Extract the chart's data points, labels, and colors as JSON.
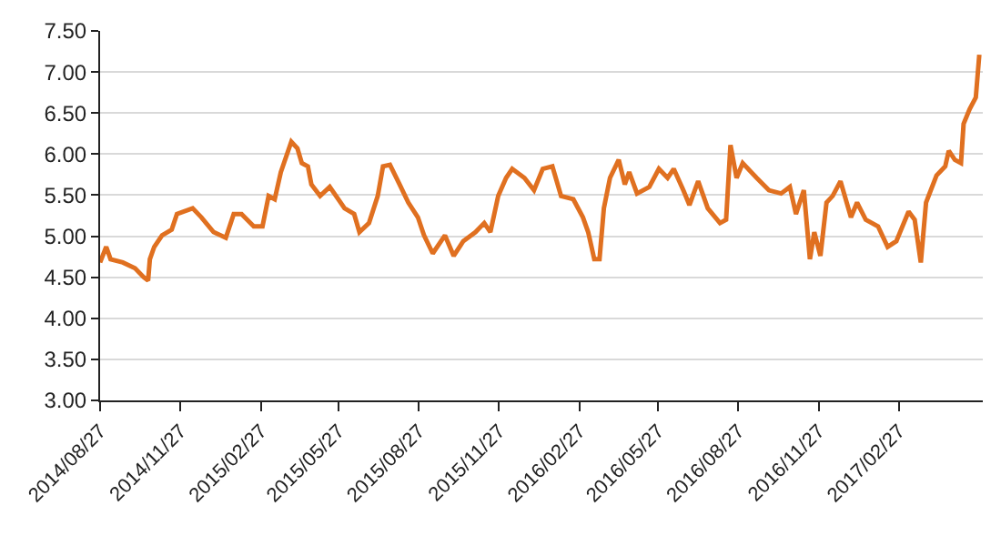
{
  "chart_data": {
    "type": "line",
    "grid": "y",
    "legend": false,
    "marker": "none",
    "line_style": "solid",
    "xlim": [
      "2014-08-27",
      "2017-06-03"
    ],
    "ylim": [
      3,
      7.5
    ],
    "yticks": [
      {
        "value": 3,
        "label": "3.00"
      },
      {
        "value": 3.5,
        "label": "3.50"
      },
      {
        "value": 4,
        "label": "4.00"
      },
      {
        "value": 4.5,
        "label": "4.50"
      },
      {
        "value": 5,
        "label": "5.00"
      },
      {
        "value": 5.5,
        "label": "5.50"
      },
      {
        "value": 6,
        "label": "6.00"
      },
      {
        "value": 6.5,
        "label": "6.50"
      },
      {
        "value": 7,
        "label": "7.00"
      },
      {
        "value": 7.5,
        "label": "7.50"
      }
    ],
    "xticks": [
      {
        "value": "2014-08-27",
        "label": "2014/08/27"
      },
      {
        "value": "2014-11-27",
        "label": "2014/11/27"
      },
      {
        "value": "2015-02-27",
        "label": "2015/02/27"
      },
      {
        "value": "2015-05-27",
        "label": "2015/05/27"
      },
      {
        "value": "2015-08-27",
        "label": "2015/08/27"
      },
      {
        "value": "2015-11-27",
        "label": "2015/11/27"
      },
      {
        "value": "2016-02-27",
        "label": "2016/02/27"
      },
      {
        "value": "2016-05-27",
        "label": "2016/05/27"
      },
      {
        "value": "2016-08-27",
        "label": "2016/08/27"
      },
      {
        "value": "2016-11-27",
        "label": "2016/11/27"
      },
      {
        "value": "2017-02-27",
        "label": "2017/02/27"
      }
    ],
    "x": [
      "2014-08-27",
      "2014-09-03",
      "2014-09-08",
      "2014-09-22",
      "2014-10-06",
      "2014-10-16",
      "2014-10-21",
      "2014-10-23",
      "2014-10-28",
      "2014-11-06",
      "2014-11-17",
      "2014-11-23",
      "2014-12-11",
      "2014-12-21",
      "2015-01-04",
      "2015-01-18",
      "2015-01-27",
      "2015-02-05",
      "2015-02-19",
      "2015-03-01",
      "2015-03-08",
      "2015-03-15",
      "2015-03-22",
      "2015-04-03",
      "2015-04-10",
      "2015-04-15",
      "2015-04-22",
      "2015-04-26",
      "2015-05-06",
      "2015-05-17",
      "2015-06-03",
      "2015-06-14",
      "2015-06-20",
      "2015-07-01",
      "2015-07-11",
      "2015-07-17",
      "2015-07-25",
      "2015-08-05",
      "2015-08-15",
      "2015-08-26",
      "2015-09-02",
      "2015-09-12",
      "2015-09-26",
      "2015-10-06",
      "2015-10-17",
      "2015-10-31",
      "2015-11-10",
      "2015-11-17",
      "2015-11-26",
      "2015-12-05",
      "2015-12-12",
      "2015-12-26",
      "2016-01-06",
      "2016-01-16",
      "2016-01-27",
      "2016-02-06",
      "2016-02-20",
      "2016-03-02",
      "2016-03-08",
      "2016-03-15",
      "2016-03-21",
      "2016-03-26",
      "2016-04-02",
      "2016-04-12",
      "2016-04-19",
      "2016-04-24",
      "2016-05-03",
      "2016-05-17",
      "2016-05-28",
      "2016-06-07",
      "2016-06-14",
      "2016-06-25",
      "2016-07-02",
      "2016-07-12",
      "2016-07-23",
      "2016-08-06",
      "2016-08-13",
      "2016-08-18",
      "2016-08-25",
      "2016-09-01",
      "2016-09-17",
      "2016-10-01",
      "2016-10-15",
      "2016-10-25",
      "2016-11-01",
      "2016-11-10",
      "2016-11-17",
      "2016-11-22",
      "2016-11-29",
      "2016-12-06",
      "2016-12-13",
      "2016-12-22",
      "2017-01-03",
      "2017-01-10",
      "2017-01-20",
      "2017-02-03",
      "2017-02-14",
      "2017-02-24",
      "2017-03-10",
      "2017-03-17",
      "2017-03-24",
      "2017-03-30",
      "2017-04-11",
      "2017-04-21",
      "2017-04-25",
      "2017-05-02",
      "2017-05-09",
      "2017-05-12",
      "2017-05-19",
      "2017-05-26",
      "2017-05-30"
    ],
    "series": [
      {
        "color": "#e07020",
        "values": [
          4.68,
          4.87,
          4.72,
          4.68,
          4.61,
          4.5,
          4.46,
          4.72,
          4.87,
          5.01,
          5.08,
          5.27,
          5.34,
          5.23,
          5.05,
          4.98,
          5.27,
          5.27,
          5.12,
          5.12,
          5.49,
          5.45,
          5.78,
          6.15,
          6.07,
          5.89,
          5.85,
          5.63,
          5.49,
          5.6,
          5.34,
          5.27,
          5.05,
          5.16,
          5.49,
          5.85,
          5.87,
          5.63,
          5.41,
          5.23,
          5.01,
          4.79,
          5.01,
          4.76,
          4.94,
          5.05,
          5.16,
          5.05,
          5.49,
          5.71,
          5.82,
          5.71,
          5.56,
          5.82,
          5.85,
          5.49,
          5.45,
          5.23,
          5.05,
          4.72,
          4.72,
          5.34,
          5.71,
          5.93,
          5.63,
          5.78,
          5.52,
          5.6,
          5.82,
          5.71,
          5.82,
          5.56,
          5.38,
          5.67,
          5.34,
          5.16,
          5.2,
          6.11,
          5.71,
          5.89,
          5.71,
          5.56,
          5.52,
          5.6,
          5.27,
          5.56,
          4.72,
          5.05,
          4.76,
          5.41,
          5.49,
          5.67,
          5.23,
          5.41,
          5.2,
          5.12,
          4.87,
          4.94,
          5.3,
          5.2,
          4.68,
          5.41,
          5.74,
          5.85,
          6.04,
          5.93,
          5.89,
          6.37,
          6.55,
          6.69,
          7.21
        ]
      }
    ]
  }
}
